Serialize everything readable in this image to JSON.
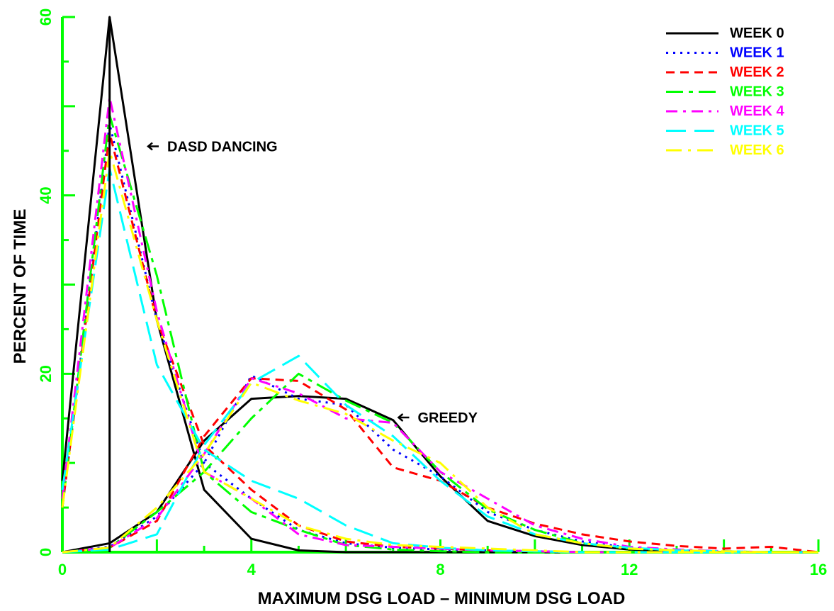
{
  "chart_data": {
    "type": "line",
    "title": "",
    "xlabel": "MAXIMUM DSG LOAD – MINIMUM DSG LOAD",
    "ylabel": "PERCENT OF TIME",
    "xlim": [
      0,
      16
    ],
    "ylim": [
      0,
      60
    ],
    "xticks": [
      "0",
      "4",
      "8",
      "12",
      "16"
    ],
    "yticks": [
      "0",
      "20",
      "40",
      "60"
    ],
    "grid": false,
    "legend_position": "top-right",
    "axis_color": "#00ff00",
    "annotations": [
      {
        "text": "DASD DANCING",
        "x": 1.8,
        "y": 45.5
      },
      {
        "text": "GREEDY",
        "x": 7.1,
        "y": 15.1
      }
    ],
    "series": [
      {
        "name": "WEEK 0",
        "color": "#000000",
        "dash": "solid",
        "dasd": [
          [
            0,
            8
          ],
          [
            1,
            60
          ],
          [
            2,
            26
          ],
          [
            3,
            7
          ],
          [
            4,
            1.5
          ],
          [
            5,
            0.2
          ],
          [
            6,
            0
          ],
          [
            7,
            0
          ],
          [
            8,
            0
          ],
          [
            9,
            0
          ],
          [
            10,
            0
          ],
          [
            11,
            0
          ],
          [
            12,
            0
          ],
          [
            13,
            0
          ],
          [
            14,
            0
          ],
          [
            15,
            0
          ],
          [
            16,
            0
          ]
        ],
        "greedy": [
          [
            0,
            0
          ],
          [
            1,
            1
          ],
          [
            2,
            4.5
          ],
          [
            3,
            12.5
          ],
          [
            4,
            17.2
          ],
          [
            5,
            17.5
          ],
          [
            6,
            17.2
          ],
          [
            7,
            14.8
          ],
          [
            8,
            8.5
          ],
          [
            9,
            3.5
          ],
          [
            10,
            1.8
          ],
          [
            11,
            0.8
          ],
          [
            12,
            0.3
          ],
          [
            13,
            0.1
          ],
          [
            14,
            0
          ],
          [
            15,
            0
          ],
          [
            16,
            0
          ]
        ]
      },
      {
        "name": "WEEK 1",
        "color": "#0000ff",
        "dash": "dot",
        "dasd": [
          [
            0,
            5
          ],
          [
            1,
            48
          ],
          [
            2,
            26
          ],
          [
            3,
            10
          ],
          [
            4,
            6
          ],
          [
            5,
            2.5
          ],
          [
            6,
            1
          ],
          [
            7,
            0.5
          ],
          [
            8,
            0.3
          ],
          [
            9,
            0.2
          ],
          [
            10,
            0.1
          ],
          [
            11,
            0
          ],
          [
            12,
            0
          ],
          [
            13,
            0
          ],
          [
            14,
            0
          ],
          [
            15,
            0
          ],
          [
            16,
            0
          ]
        ],
        "greedy": [
          [
            0,
            0
          ],
          [
            1,
            0.6
          ],
          [
            2,
            4
          ],
          [
            3,
            10
          ],
          [
            4,
            19.8
          ],
          [
            5,
            17.2
          ],
          [
            6,
            16.5
          ],
          [
            7,
            11.5
          ],
          [
            8,
            8.5
          ],
          [
            9,
            4.5
          ],
          [
            10,
            2.5
          ],
          [
            11,
            1.2
          ],
          [
            12,
            0.5
          ],
          [
            13,
            0.2
          ],
          [
            14,
            0.1
          ],
          [
            15,
            0
          ],
          [
            16,
            0
          ]
        ]
      },
      {
        "name": "WEEK 2",
        "color": "#ff0000",
        "dash": "dash",
        "dasd": [
          [
            0,
            5
          ],
          [
            1,
            47
          ],
          [
            2,
            26
          ],
          [
            3,
            12
          ],
          [
            4,
            7
          ],
          [
            5,
            3
          ],
          [
            6,
            1.2
          ],
          [
            7,
            0.6
          ],
          [
            8,
            0.4
          ],
          [
            9,
            0.2
          ],
          [
            10,
            0.1
          ],
          [
            11,
            0
          ],
          [
            12,
            0
          ],
          [
            13,
            0
          ],
          [
            14,
            0
          ],
          [
            15,
            0
          ],
          [
            16,
            0
          ]
        ],
        "greedy": [
          [
            0,
            0
          ],
          [
            1,
            0.5
          ],
          [
            2,
            3.5
          ],
          [
            3,
            13
          ],
          [
            4,
            19.5
          ],
          [
            5,
            19.2
          ],
          [
            6,
            16
          ],
          [
            7,
            9.5
          ],
          [
            8,
            8
          ],
          [
            9,
            5
          ],
          [
            10,
            3.2
          ],
          [
            11,
            2
          ],
          [
            12,
            1.2
          ],
          [
            13,
            0.7
          ],
          [
            14,
            0.4
          ],
          [
            15,
            0.6
          ],
          [
            16,
            0
          ]
        ]
      },
      {
        "name": "WEEK 3",
        "color": "#00ff00",
        "dash": "dashdot",
        "dasd": [
          [
            0,
            5
          ],
          [
            1,
            49
          ],
          [
            2,
            31
          ],
          [
            3,
            9
          ],
          [
            4,
            4.5
          ],
          [
            5,
            2.5
          ],
          [
            6,
            0.8
          ],
          [
            7,
            0.3
          ],
          [
            8,
            0.1
          ],
          [
            9,
            0
          ],
          [
            10,
            0
          ],
          [
            11,
            0
          ],
          [
            12,
            0
          ],
          [
            13,
            0
          ],
          [
            14,
            0
          ],
          [
            15,
            0
          ],
          [
            16,
            0
          ]
        ],
        "greedy": [
          [
            0,
            0
          ],
          [
            1,
            0.5
          ],
          [
            2,
            4.5
          ],
          [
            3,
            9
          ],
          [
            4,
            15
          ],
          [
            5,
            20
          ],
          [
            6,
            17
          ],
          [
            7,
            14.5
          ],
          [
            8,
            9
          ],
          [
            9,
            4.8
          ],
          [
            10,
            2.5
          ],
          [
            11,
            1
          ],
          [
            12,
            0.4
          ],
          [
            13,
            0.2
          ],
          [
            14,
            0.1
          ],
          [
            15,
            0
          ],
          [
            16,
            0
          ]
        ]
      },
      {
        "name": "WEEK 4",
        "color": "#ff00ff",
        "dash": "dashdot2",
        "dasd": [
          [
            0,
            6
          ],
          [
            1,
            51
          ],
          [
            2,
            27
          ],
          [
            3,
            9
          ],
          [
            4,
            6
          ],
          [
            5,
            2
          ],
          [
            6,
            0.8
          ],
          [
            7,
            0.6
          ],
          [
            8,
            0.4
          ],
          [
            9,
            0.2
          ],
          [
            10,
            0.1
          ],
          [
            11,
            0
          ],
          [
            12,
            0
          ],
          [
            13,
            0
          ],
          [
            14,
            0
          ],
          [
            15,
            0
          ],
          [
            16,
            0
          ]
        ],
        "greedy": [
          [
            0,
            0
          ],
          [
            1,
            0.5
          ],
          [
            2,
            3.8
          ],
          [
            3,
            11
          ],
          [
            4,
            19.5
          ],
          [
            5,
            17.8
          ],
          [
            6,
            15
          ],
          [
            7,
            14.5
          ],
          [
            8,
            9
          ],
          [
            9,
            6
          ],
          [
            10,
            3
          ],
          [
            11,
            1.5
          ],
          [
            12,
            0.6
          ],
          [
            13,
            0.3
          ],
          [
            14,
            0.1
          ],
          [
            15,
            0
          ],
          [
            16,
            0
          ]
        ]
      },
      {
        "name": "WEEK 5",
        "color": "#00ffff",
        "dash": "longdash",
        "dasd": [
          [
            0,
            7
          ],
          [
            1,
            43
          ],
          [
            2,
            21
          ],
          [
            3,
            11.5
          ],
          [
            4,
            8
          ],
          [
            5,
            6
          ],
          [
            6,
            3
          ],
          [
            7,
            1
          ],
          [
            8,
            0.5
          ],
          [
            9,
            0.2
          ],
          [
            10,
            0.1
          ],
          [
            11,
            0
          ],
          [
            12,
            0
          ],
          [
            13,
            0
          ],
          [
            14,
            0
          ],
          [
            15,
            0
          ],
          [
            16,
            0
          ]
        ],
        "greedy": [
          [
            0,
            0
          ],
          [
            1,
            0.3
          ],
          [
            2,
            2
          ],
          [
            3,
            12
          ],
          [
            4,
            19
          ],
          [
            5,
            22
          ],
          [
            6,
            16.5
          ],
          [
            7,
            13
          ],
          [
            8,
            8
          ],
          [
            9,
            4
          ],
          [
            10,
            2
          ],
          [
            11,
            1
          ],
          [
            12,
            0.5
          ],
          [
            13,
            0.2
          ],
          [
            14,
            0.1
          ],
          [
            15,
            0
          ],
          [
            16,
            0
          ]
        ]
      },
      {
        "name": "WEEK 6",
        "color": "#ffff00",
        "dash": "longdashdot",
        "dasd": [
          [
            0,
            5
          ],
          [
            1,
            45
          ],
          [
            2,
            26
          ],
          [
            3,
            9
          ],
          [
            4,
            6
          ],
          [
            5,
            3
          ],
          [
            6,
            1.5
          ],
          [
            7,
            0.8
          ],
          [
            8,
            0.6
          ],
          [
            9,
            0.4
          ],
          [
            10,
            0.2
          ],
          [
            11,
            0
          ],
          [
            12,
            0
          ],
          [
            13,
            0
          ],
          [
            14,
            0
          ],
          [
            15,
            0
          ],
          [
            16,
            0
          ]
        ],
        "greedy": [
          [
            0,
            0
          ],
          [
            1,
            0.5
          ],
          [
            2,
            5
          ],
          [
            3,
            11
          ],
          [
            4,
            19
          ],
          [
            5,
            17
          ],
          [
            6,
            15.5
          ],
          [
            7,
            12.5
          ],
          [
            8,
            10
          ],
          [
            9,
            5
          ],
          [
            10,
            2
          ],
          [
            11,
            1
          ],
          [
            12,
            0.4
          ],
          [
            13,
            0.2
          ],
          [
            14,
            0.1
          ],
          [
            15,
            0
          ],
          [
            16,
            0
          ]
        ]
      }
    ]
  }
}
